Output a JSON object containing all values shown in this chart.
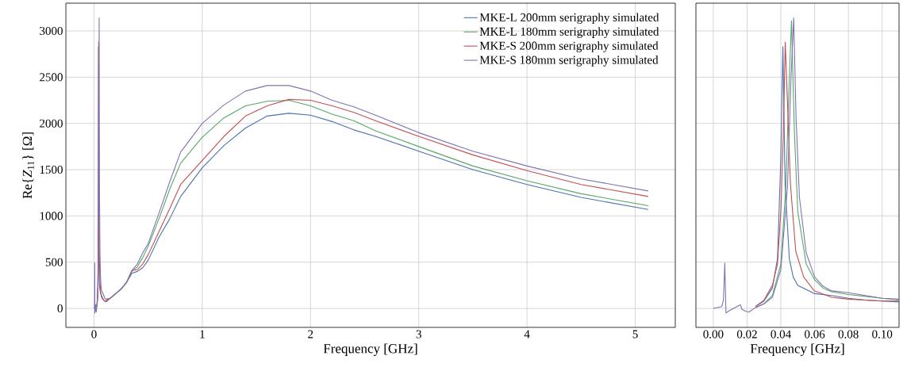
{
  "chart_data": [
    {
      "type": "line",
      "xlabel": "Frequency [GHz]",
      "ylabel": "Re{*Z*$_{11}$} [Ω]",
      "xlim": [
        -0.26,
        5.37
      ],
      "ylim": [
        -205,
        3300
      ],
      "xticks": [
        0,
        1,
        2,
        3,
        4,
        5
      ],
      "yticks": [
        0,
        500,
        1000,
        1500,
        2000,
        2500,
        3000
      ],
      "grid": true,
      "legend": "top right",
      "series": [
        {
          "name": "MKE-L 200mm serigraphy simulated",
          "color": "#4c72b0",
          "x": [
            0.025,
            0.03,
            0.035,
            0.038,
            0.04,
            0.0412,
            0.0425,
            0.045,
            0.0473,
            0.05,
            0.06,
            0.07,
            0.08,
            0.09,
            0.1,
            0.11,
            0.15,
            0.2,
            0.25,
            0.3,
            0.35,
            0.4,
            0.45,
            0.5,
            0.6,
            0.7,
            0.8,
            1.0,
            1.2,
            1.4,
            1.6,
            1.8,
            2.0,
            2.2,
            2.4,
            2.6,
            3.0,
            3.5,
            4.0,
            4.5,
            5.12
          ],
          "values": [
            20,
            80,
            220,
            540,
            1630,
            2830,
            1340,
            540,
            340,
            250,
            160,
            140,
            110,
            90,
            80,
            70,
            110,
            160,
            210,
            280,
            380,
            400,
            440,
            520,
            770,
            970,
            1210,
            1520,
            1760,
            1950,
            2080,
            2110,
            2090,
            2020,
            1930,
            1860,
            1700,
            1500,
            1340,
            1200,
            1070
          ]
        },
        {
          "name": "MKE-L 180mm serigraphy simulated",
          "color": "#55a868",
          "x": [
            0.11,
            0.15,
            0.2,
            0.25,
            0.3,
            0.35,
            0.4,
            0.45,
            0.5,
            0.6,
            0.7,
            0.8,
            1.0,
            1.2,
            1.4,
            1.6,
            1.8,
            2.0,
            2.2,
            2.4,
            2.6,
            3.0,
            3.5,
            4.0,
            4.5,
            5.12
          ],
          "values": [
            90,
            110,
            160,
            210,
            280,
            400,
            450,
            550,
            670,
            970,
            1290,
            1570,
            1850,
            2060,
            2190,
            2240,
            2250,
            2190,
            2100,
            2030,
            1920,
            1750,
            1540,
            1380,
            1240,
            1110
          ]
        },
        {
          "name": "MKE-S 200mm serigraphy simulated",
          "color": "#c44e52",
          "x": [
            0.025,
            0.03,
            0.035,
            0.038,
            0.04,
            0.0415,
            0.0426,
            0.0457,
            0.0488,
            0.0535,
            0.0598,
            0.0629,
            0.07,
            0.08,
            0.1,
            0.11,
            0.15,
            0.2,
            0.25,
            0.3,
            0.35,
            0.4,
            0.45,
            0.5,
            0.6,
            0.7,
            0.8,
            1.0,
            1.2,
            1.4,
            1.6,
            1.8,
            2.0,
            2.2,
            2.4,
            2.6,
            3.0,
            3.5,
            4.0,
            4.5,
            5.12
          ],
          "values": [
            20,
            90,
            250,
            480,
            1050,
            1920,
            2880,
            1340,
            620,
            340,
            190,
            170,
            120,
            100,
            80,
            80,
            110,
            160,
            210,
            280,
            410,
            420,
            480,
            580,
            830,
            1080,
            1340,
            1600,
            1860,
            2080,
            2190,
            2260,
            2250,
            2190,
            2120,
            2030,
            1860,
            1660,
            1490,
            1340,
            1210
          ]
        },
        {
          "name": "MKE-S 180mm serigraphy simulated",
          "color": "#8172b2",
          "x": [
            0,
            0.005,
            0.006,
            0.0068,
            0.0075,
            0.009,
            0.012,
            0.015,
            0.016,
            0.017,
            0.019,
            0.021,
            0.025,
            0.03,
            0.035,
            0.04,
            0.044,
            0.046,
            0.0476,
            0.049,
            0.051,
            0.055,
            0.06,
            0.065,
            0.07,
            0.08,
            0.09,
            0.1,
            0.11,
            0.15,
            0.2,
            0.25,
            0.3,
            0.35,
            0.4,
            0.45,
            0.5,
            0.6,
            0.7,
            0.8,
            1.0,
            1.2,
            1.4,
            1.6,
            1.8,
            2.0,
            2.2,
            2.4,
            2.6,
            3.0,
            3.5,
            4.0,
            4.5,
            5.12
          ],
          "values": [
            0,
            20,
            90,
            490,
            -50,
            -30,
            0,
            30,
            40,
            -10,
            -30,
            -40,
            10,
            50,
            120,
            420,
            1340,
            2490,
            3140,
            2060,
            1200,
            600,
            340,
            240,
            190,
            170,
            140,
            110,
            100,
            110,
            160,
            210,
            280,
            410,
            480,
            600,
            700,
            1030,
            1370,
            1690,
            2000,
            2200,
            2350,
            2410,
            2410,
            2350,
            2250,
            2180,
            2090,
            1900,
            1700,
            1540,
            1400,
            1270
          ]
        }
      ]
    },
    {
      "type": "line",
      "xlabel": "Frequency [GHz]",
      "xlim": [
        -0.0103,
        0.11
      ],
      "ylim": [
        -205,
        3300
      ],
      "xticks": [
        {
          "value": 0,
          "label": "0.00"
        },
        {
          "value": 0.02,
          "label": "0.02"
        },
        {
          "value": 0.04,
          "label": "0.04"
        },
        {
          "value": 0.06,
          "label": "0.06"
        },
        {
          "value": 0.08,
          "label": "0.08"
        },
        {
          "value": 0.1,
          "label": "0.10"
        }
      ],
      "yticks": [
        0,
        500,
        1000,
        1500,
        2000,
        2500,
        3000
      ],
      "grid": true,
      "tick_labels": "x",
      "series": [
        {
          "color": "#4c72b0",
          "x": [
            0.025,
            0.03,
            0.035,
            0.038,
            0.04,
            0.0412,
            0.0425,
            0.045,
            0.0473,
            0.05,
            0.06,
            0.07,
            0.08,
            0.09,
            0.1,
            0.11
          ],
          "values": [
            20,
            80,
            220,
            540,
            1630,
            2830,
            1340,
            540,
            340,
            250,
            160,
            140,
            110,
            90,
            80,
            70
          ]
        },
        {
          "color": "#55a868",
          "x": [
            0.025,
            0.03,
            0.035,
            0.04,
            0.043,
            0.045,
            0.0463,
            0.048,
            0.05,
            0.055,
            0.06,
            0.065,
            0.07,
            0.08,
            0.09,
            0.1,
            0.11
          ],
          "values": [
            10,
            50,
            140,
            480,
            1340,
            2490,
            3110,
            1920,
            1050,
            480,
            310,
            220,
            180,
            150,
            130,
            110,
            90
          ]
        },
        {
          "color": "#c44e52",
          "x": [
            0.025,
            0.03,
            0.035,
            0.038,
            0.04,
            0.0415,
            0.0426,
            0.0457,
            0.0488,
            0.0535,
            0.0598,
            0.0629,
            0.07,
            0.08,
            0.1,
            0.11
          ],
          "values": [
            20,
            90,
            250,
            480,
            1050,
            1920,
            2880,
            1340,
            620,
            340,
            190,
            170,
            120,
            100,
            80,
            80
          ]
        },
        {
          "color": "#8172b2",
          "x": [
            0,
            0.005,
            0.006,
            0.0068,
            0.0075,
            0.009,
            0.012,
            0.015,
            0.016,
            0.017,
            0.019,
            0.021,
            0.025,
            0.03,
            0.035,
            0.04,
            0.044,
            0.046,
            0.0476,
            0.049,
            0.051,
            0.055,
            0.06,
            0.065,
            0.07,
            0.08,
            0.09,
            0.1,
            0.11
          ],
          "values": [
            0,
            20,
            90,
            490,
            -50,
            -30,
            0,
            30,
            40,
            -10,
            -30,
            -40,
            10,
            50,
            120,
            420,
            1340,
            2490,
            3140,
            2060,
            1200,
            600,
            340,
            240,
            190,
            170,
            140,
            110,
            100
          ]
        }
      ]
    }
  ]
}
